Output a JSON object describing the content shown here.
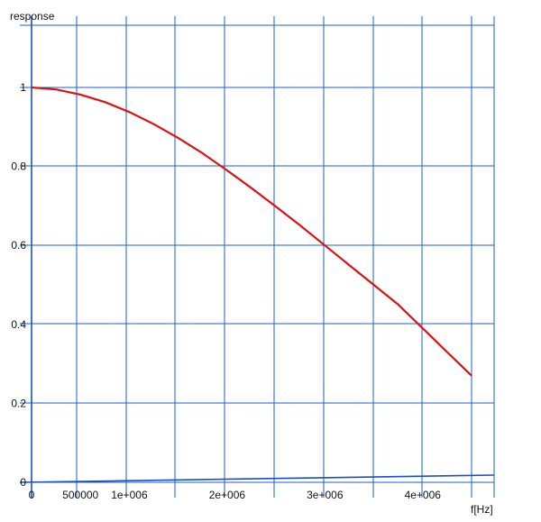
{
  "chart_data": {
    "type": "line",
    "title": "",
    "xlabel": "f[Hz]",
    "ylabel": "response",
    "xlim": [
      0,
      4500000
    ],
    "ylim": [
      0,
      1.0
    ],
    "grid": true,
    "legend": "none",
    "colors": {
      "curve": "#dd1111",
      "grid": "#1a5fd6",
      "text": "#111111"
    },
    "x_ticks": [
      {
        "value": 0,
        "label": "0"
      },
      {
        "value": 500000,
        "label": "500000"
      },
      {
        "value": 1000000,
        "label": "1e+006"
      },
      {
        "value": 2000000,
        "label": "2e+006"
      },
      {
        "value": 3000000,
        "label": "3e+006"
      },
      {
        "value": 4000000,
        "label": "4e+006"
      }
    ],
    "y_ticks": [
      {
        "value": 0,
        "label": "0"
      },
      {
        "value": 0.2,
        "label": "0.2"
      },
      {
        "value": 0.4,
        "label": "0.4"
      },
      {
        "value": 0.6,
        "label": "0.6"
      },
      {
        "value": 0.8,
        "label": "0.8"
      },
      {
        "value": 1.0,
        "label": "1"
      }
    ],
    "series": [
      {
        "x": [
          0,
          250000,
          500000,
          750000,
          1000000,
          1250000,
          1500000,
          1750000,
          2000000,
          2250000,
          2500000,
          2750000,
          3000000,
          3250000,
          3500000,
          3750000,
          4000000,
          4250000,
          4500000
        ],
        "values": [
          1.0,
          0.995,
          0.982,
          0.963,
          0.938,
          0.907,
          0.872,
          0.833,
          0.79,
          0.745,
          0.698,
          0.65,
          0.6,
          0.55,
          0.5,
          0.45,
          0.39,
          0.33,
          0.27
        ]
      }
    ]
  }
}
